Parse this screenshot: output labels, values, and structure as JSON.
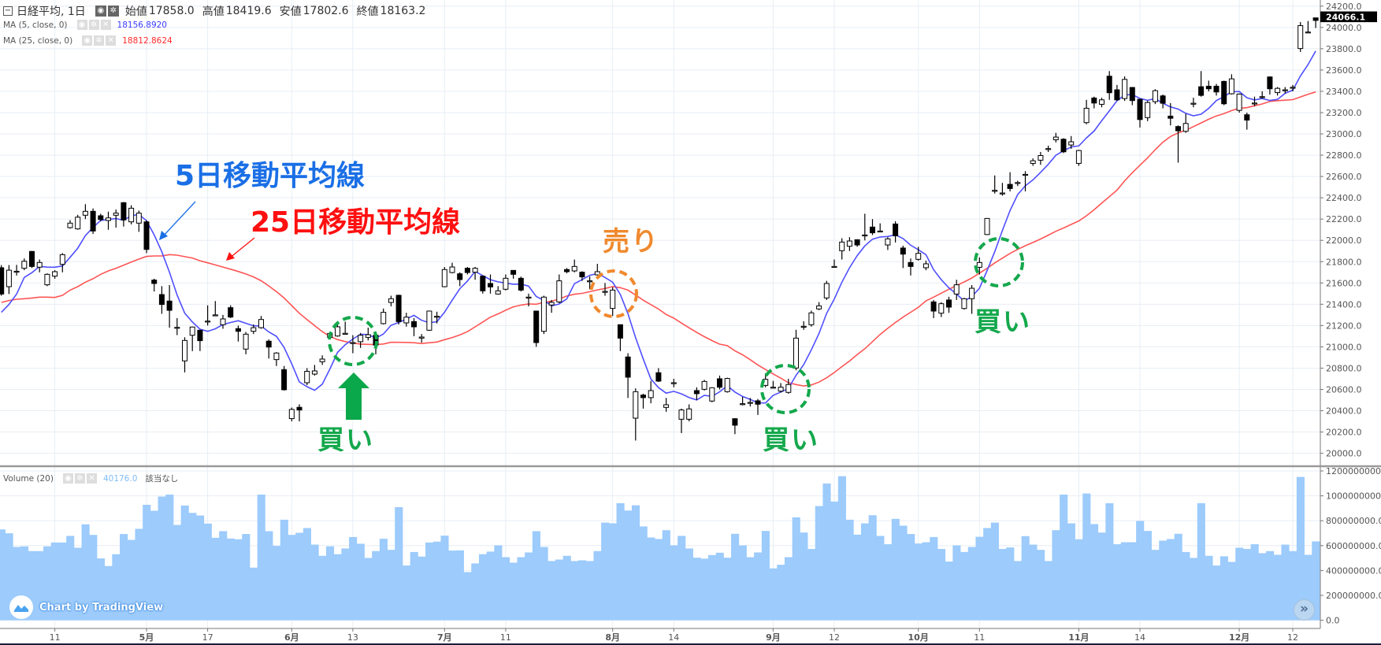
{
  "header": {
    "collapse_icon": "minus-square-icon",
    "symbol": "日経平均, 1日",
    "open_label": "始値",
    "open": "17858.0",
    "high_label": "高値",
    "high": "18419.6",
    "low_label": "安値",
    "low": "17802.6",
    "close_label": "終値",
    "close": "18163.2"
  },
  "indicators": [
    {
      "name": "MA (5, close, 0)",
      "value": "18156.8920",
      "color": "#3b3bff"
    },
    {
      "name": "MA (25, close, 0)",
      "value": "18812.8624",
      "color": "#ff2a2a"
    }
  ],
  "volume_legend": {
    "name": "Volume (20)",
    "value": "40176.0",
    "note": "該当なし",
    "value_color": "#7fbcf5"
  },
  "annotations": {
    "ma5_label": "5日移動平均線",
    "ma25_label": "25日移動平均線",
    "sell_label": "売り",
    "buy_labels": [
      "買い",
      "買い",
      "買い"
    ],
    "colors": {
      "ma5_text": "#1a6fe6",
      "ma25_text": "#ff1010",
      "sell": "#f0892e",
      "buy": "#14a84c"
    }
  },
  "branding": "Chart by TradingView",
  "scroll_button": "»",
  "last_price": "24066.1",
  "chart_data": {
    "type": "candlestick",
    "price_ticks": [
      "20000.0",
      "20200.0",
      "20400.0",
      "20600.0",
      "20800.0",
      "21000.0",
      "21200.0",
      "21400.0",
      "21600.0",
      "21800.0",
      "22000.0",
      "22200.0",
      "22400.0",
      "22600.0",
      "22800.0",
      "23000.0",
      "23200.0",
      "23400.0",
      "23600.0",
      "23800.0",
      "24000.0",
      "24200.0"
    ],
    "volume_ticks": [
      "0.0",
      "200000000.0",
      "400000000.0",
      "600000000.0",
      "800000000.0",
      "1000000000.0",
      "1200000000.0"
    ],
    "x_labels": [
      {
        "index": 7,
        "label": "11"
      },
      {
        "index": 19,
        "label": "5月"
      },
      {
        "index": 27,
        "label": "17"
      },
      {
        "index": 38,
        "label": "6月"
      },
      {
        "index": 46,
        "label": "13"
      },
      {
        "index": 58,
        "label": "7月"
      },
      {
        "index": 66,
        "label": "11"
      },
      {
        "index": 80,
        "label": "8月"
      },
      {
        "index": 88,
        "label": "14"
      },
      {
        "index": 101,
        "label": "9月"
      },
      {
        "index": 109,
        "label": "12"
      },
      {
        "index": 120,
        "label": "10月"
      },
      {
        "index": 128,
        "label": "11"
      },
      {
        "index": 141,
        "label": "11月"
      },
      {
        "index": 149,
        "label": "14"
      },
      {
        "index": 162,
        "label": "12月"
      },
      {
        "index": 169,
        "label": "12"
      }
    ],
    "colors": {
      "up": "#ffffff",
      "down": "#000000",
      "ma5": "#4f4fff",
      "ma25": "#ff5555",
      "volume": "#9ccbfc",
      "grid": "#e7eef5"
    },
    "ma5_initial": [
      21324,
      21398,
      21496,
      21652
    ],
    "ma25_initial": [
      21417,
      21435,
      21447,
      21452,
      21459,
      21467,
      21467,
      21464,
      21484,
      21533,
      21565,
      21607,
      21640,
      21681,
      21713,
      21738,
      21767,
      21797,
      21824,
      21849,
      21854,
      21854,
      21866,
      21861
    ],
    "ohlc": [
      [
        21743,
        21768,
        21480,
        21496
      ],
      [
        21565,
        21768,
        21496,
        21720
      ],
      [
        21710,
        21770,
        21670,
        21710
      ],
      [
        21738,
        21830,
        21720,
        21804
      ],
      [
        21896,
        21900,
        21740,
        21755
      ],
      [
        21748,
        21820,
        21700,
        21792
      ],
      [
        21583,
        21690,
        21570,
        21681
      ],
      [
        21664,
        21720,
        21640,
        21706
      ],
      [
        21775,
        21880,
        21700,
        21866
      ],
      [
        22120,
        22190,
        22110,
        22162
      ],
      [
        22108,
        22240,
        22100,
        22218
      ],
      [
        22236,
        22340,
        22200,
        22273
      ],
      [
        22273,
        22300,
        22060,
        22088
      ],
      [
        22231,
        22250,
        22180,
        22196
      ],
      [
        22187,
        22270,
        22100,
        22211
      ],
      [
        22236,
        22290,
        22120,
        22256
      ],
      [
        22354,
        22360,
        22130,
        22192
      ],
      [
        22174,
        22330,
        22150,
        22302
      ],
      [
        22162,
        22280,
        22080,
        22256
      ],
      [
        22174,
        22190,
        21880,
        21915
      ],
      [
        21627,
        21640,
        21520,
        21595
      ],
      [
        21491,
        21570,
        21310,
        21398
      ],
      [
        21430,
        21580,
        21180,
        21343
      ],
      [
        21183,
        21270,
        21110,
        21183
      ],
      [
        20868,
        21090,
        20760,
        21060
      ],
      [
        21109,
        21190,
        20960,
        21186
      ],
      [
        21156,
        21160,
        20960,
        21058
      ],
      [
        21242,
        21390,
        21200,
        21242
      ],
      [
        21300,
        21430,
        21290,
        21300
      ],
      [
        21208,
        21300,
        21170,
        21262
      ],
      [
        21368,
        21390,
        21270,
        21280
      ],
      [
        21171,
        21200,
        21050,
        21146
      ],
      [
        20979,
        21140,
        20930,
        21119
      ],
      [
        21146,
        21210,
        21120,
        21180
      ],
      [
        21180,
        21290,
        21170,
        21257
      ],
      [
        21053,
        21070,
        20890,
        20998
      ],
      [
        20880,
        20950,
        20820,
        20942
      ],
      [
        20786,
        20820,
        20590,
        20597
      ],
      [
        20326,
        20430,
        20300,
        20412
      ],
      [
        20432,
        20460,
        20300,
        20407
      ],
      [
        20663,
        20800,
        20640,
        20770
      ],
      [
        20744,
        20830,
        20730,
        20774
      ],
      [
        20860,
        20920,
        20830,
        20885
      ],
      [
        21089,
        21140,
        21080,
        21126
      ],
      [
        21102,
        21240,
        21095,
        21188
      ],
      [
        21127,
        21237,
        21127,
        21127
      ],
      [
        21040,
        21110,
        20940,
        21040
      ],
      [
        21048,
        21130,
        20990,
        21109
      ],
      [
        21089,
        21180,
        21060,
        21114
      ],
      [
        21109,
        21140,
        20930,
        21016
      ],
      [
        21218,
        21360,
        21210,
        21324
      ],
      [
        21417,
        21480,
        21380,
        21452
      ],
      [
        21484,
        21490,
        21210,
        21237
      ],
      [
        21225,
        21320,
        21190,
        21279
      ],
      [
        21237,
        21270,
        21100,
        21188
      ],
      [
        21082,
        21120,
        21040,
        21092
      ],
      [
        21156,
        21340,
        21150,
        21336
      ],
      [
        21287,
        21330,
        21220,
        21287
      ],
      [
        21565,
        21750,
        21560,
        21726
      ],
      [
        21698,
        21790,
        21690,
        21750
      ],
      [
        21686,
        21700,
        21570,
        21632
      ],
      [
        21738,
        21750,
        21680,
        21698
      ],
      [
        21701,
        21750,
        21630,
        21738
      ],
      [
        21664,
        21670,
        21500,
        21526
      ],
      [
        21595,
        21680,
        21500,
        21563
      ],
      [
        21496,
        21570,
        21490,
        21526
      ],
      [
        21541,
        21680,
        21530,
        21644
      ],
      [
        21718,
        21720,
        21640,
        21681
      ],
      [
        21644,
        21660,
        21520,
        21533
      ],
      [
        21467,
        21500,
        21380,
        21467
      ],
      [
        21336,
        21340,
        21000,
        21040
      ],
      [
        21146,
        21480,
        21120,
        21467
      ],
      [
        21393,
        21440,
        21320,
        21418
      ],
      [
        21422,
        21680,
        21410,
        21620
      ],
      [
        21726,
        21740,
        21690,
        21706
      ],
      [
        21713,
        21820,
        21700,
        21755
      ],
      [
        21701,
        21710,
        21620,
        21657
      ],
      [
        21620,
        21660,
        21540,
        21620
      ],
      [
        21676,
        21780,
        21670,
        21706
      ],
      [
        21521,
        21600,
        21480,
        21521
      ],
      [
        21361,
        21560,
        21290,
        21533
      ],
      [
        21208,
        21210,
        20960,
        21082
      ],
      [
        20905,
        20940,
        20520,
        20715
      ],
      [
        20330,
        20610,
        20120,
        20579
      ],
      [
        20547,
        20560,
        20420,
        20523
      ],
      [
        20523,
        20680,
        20470,
        20589
      ],
      [
        20757,
        20800,
        20670,
        20678
      ],
      [
        20431,
        20520,
        20390,
        20456
      ],
      [
        20663,
        20700,
        20620,
        20663
      ],
      [
        20320,
        20420,
        20190,
        20407
      ],
      [
        20320,
        20460,
        20300,
        20417
      ],
      [
        20589,
        20620,
        20500,
        20560
      ],
      [
        20601,
        20690,
        20590,
        20675
      ],
      [
        20491,
        20620,
        20480,
        20616
      ],
      [
        20700,
        20730,
        20600,
        20621
      ],
      [
        20579,
        20710,
        20570,
        20703
      ],
      [
        20325,
        20330,
        20180,
        20264
      ],
      [
        20466,
        20530,
        20450,
        20466
      ],
      [
        20478,
        20520,
        20440,
        20478
      ],
      [
        20493,
        20510,
        20360,
        20461
      ],
      [
        20638,
        20750,
        20620,
        20695
      ],
      [
        20621,
        20680,
        20610,
        20621
      ],
      [
        20584,
        20660,
        20570,
        20621
      ],
      [
        20572,
        20700,
        20560,
        20646
      ],
      [
        20801,
        21160,
        20780,
        21082
      ],
      [
        21193,
        21240,
        21160,
        21193
      ],
      [
        21208,
        21340,
        21190,
        21319
      ],
      [
        21356,
        21420,
        21345,
        21385
      ],
      [
        21459,
        21620,
        21440,
        21595
      ],
      [
        21755,
        21820,
        21750,
        21755
      ],
      [
        21903,
        22020,
        21820,
        21984
      ],
      [
        21945,
        22030,
        21900,
        21994
      ],
      [
        22006,
        22010,
        21940,
        21957
      ],
      [
        22051,
        22250,
        22000,
        22051
      ],
      [
        22125,
        22200,
        22050,
        22071
      ],
      [
        22088,
        22160,
        22080,
        22088
      ],
      [
        21957,
        22030,
        21910,
        22014
      ],
      [
        22154,
        22180,
        21980,
        22043
      ],
      [
        21928,
        21950,
        21740,
        21871
      ],
      [
        21792,
        21830,
        21670,
        21755
      ],
      [
        21822,
        21940,
        21810,
        21878
      ],
      [
        21743,
        21810,
        21720,
        21780
      ],
      [
        21422,
        21440,
        21270,
        21336
      ],
      [
        21316,
        21420,
        21280,
        21405
      ],
      [
        21440,
        21470,
        21320,
        21373
      ],
      [
        21496,
        21630,
        21440,
        21583
      ],
      [
        21360,
        21460,
        21350,
        21452
      ],
      [
        21452,
        21580,
        21310,
        21550
      ],
      [
        21747,
        21840,
        21680,
        21792
      ],
      [
        22055,
        22210,
        22050,
        22206
      ],
      [
        22470,
        22610,
        22440,
        22470
      ],
      [
        22445,
        22540,
        22420,
        22445
      ],
      [
        22526,
        22640,
        22460,
        22487
      ],
      [
        22543,
        22560,
        22510,
        22543
      ],
      [
        22620,
        22650,
        22460,
        22620
      ],
      [
        22723,
        22770,
        22700,
        22748
      ],
      [
        22753,
        22830,
        22710,
        22797
      ],
      [
        22862,
        22890,
        22830,
        22862
      ],
      [
        22945,
        23010,
        22920,
        22970
      ],
      [
        22950,
        22960,
        22820,
        22832
      ],
      [
        22896,
        22980,
        22860,
        22926
      ],
      [
        22723,
        22850,
        22700,
        22844
      ],
      [
        23106,
        23320,
        23090,
        23241
      ],
      [
        23337,
        23350,
        23240,
        23290
      ],
      [
        23278,
        23340,
        23250,
        23320
      ],
      [
        23542,
        23590,
        23320,
        23387
      ],
      [
        23414,
        23460,
        23310,
        23320
      ],
      [
        23332,
        23540,
        23310,
        23512
      ],
      [
        23436,
        23440,
        23270,
        23313
      ],
      [
        23325,
        23330,
        23060,
        23135
      ],
      [
        23153,
        23310,
        23120,
        23295
      ],
      [
        23303,
        23420,
        23280,
        23406
      ],
      [
        23357,
        23370,
        23240,
        23288
      ],
      [
        23167,
        23290,
        23080,
        23147
      ],
      [
        23069,
        23080,
        22730,
        23029
      ],
      [
        23024,
        23190,
        23010,
        23098
      ],
      [
        23288,
        23340,
        23250,
        23288
      ],
      [
        23443,
        23590,
        23350,
        23362
      ],
      [
        23448,
        23500,
        23400,
        23424
      ],
      [
        23448,
        23470,
        23360,
        23394
      ],
      [
        23493,
        23500,
        23270,
        23283
      ],
      [
        23377,
        23560,
        23370,
        23517
      ],
      [
        23221,
        23380,
        23200,
        23374
      ],
      [
        23180,
        23200,
        23040,
        23130
      ],
      [
        23290,
        23350,
        23260,
        23290
      ],
      [
        23350,
        23400,
        23330,
        23350
      ],
      [
        23535,
        23540,
        23370,
        23424
      ],
      [
        23388,
        23440,
        23360,
        23428
      ],
      [
        23414,
        23440,
        23380,
        23414
      ],
      [
        23438,
        23460,
        23400,
        23438
      ],
      [
        23802,
        24050,
        23770,
        24017
      ],
      [
        23957,
        24060,
        23957,
        23957
      ],
      [
        24090,
        24090,
        23995,
        24066
      ]
    ],
    "volume": [
      730000000,
      699000000,
      589000000,
      594000000,
      556000000,
      556000000,
      594000000,
      625000000,
      625000000,
      678000000,
      583000000,
      771000000,
      686000000,
      497000000,
      436000000,
      531000000,
      693000000,
      646000000,
      735000000,
      928000000,
      880000000,
      994000000,
      1010000000,
      766000000,
      922000000,
      863000000,
      842000000,
      777000000,
      663000000,
      716000000,
      657000000,
      651000000,
      693000000,
      423000000,
      1010000000,
      716000000,
      598000000,
      808000000,
      686000000,
      703000000,
      741000000,
      608000000,
      518000000,
      594000000,
      531000000,
      577000000,
      669000000,
      615000000,
      501000000,
      556000000,
      655000000,
      566000000,
      909000000,
      440000000,
      549000000,
      512000000,
      625000000,
      632000000,
      680000000,
      560000000,
      562000000,
      387000000,
      457000000,
      531000000,
      552000000,
      602000000,
      507000000,
      463000000,
      507000000,
      545000000,
      716000000,
      589000000,
      476000000,
      488000000,
      518000000,
      476000000,
      482000000,
      476000000,
      556000000,
      785000000,
      779000000,
      941000000,
      882000000,
      924000000,
      754000000,
      665000000,
      653000000,
      724000000,
      602000000,
      678000000,
      577000000,
      503000000,
      495000000,
      524000000,
      543000000,
      503000000,
      695000000,
      602000000,
      507000000,
      545000000,
      718000000,
      417000000,
      446000000,
      507000000,
      827000000,
      705000000,
      573000000,
      918000000,
      1099000000,
      954000000,
      1158000000,
      808000000,
      688000000,
      779000000,
      844000000,
      678000000,
      611000000,
      815000000,
      760000000,
      693000000,
      617000000,
      627000000,
      669000000,
      573000000,
      472000000,
      602000000,
      549000000,
      589000000,
      671000000,
      741000000,
      785000000,
      573000000,
      585000000,
      476000000,
      676000000,
      608000000,
      566000000,
      476000000,
      724000000,
      1010000000,
      779000000,
      651000000,
      1019000000,
      773000000,
      705000000,
      941000000,
      611000000,
      627000000,
      627000000,
      798000000,
      718000000,
      566000000,
      640000000,
      653000000,
      695000000,
      549000000,
      501000000,
      941000000,
      518000000,
      440000000,
      514000000,
      469000000,
      583000000,
      573000000,
      611000000,
      539000000,
      556000000,
      526000000,
      608000000,
      556000000,
      1152000000,
      526000000,
      634000000
    ]
  }
}
